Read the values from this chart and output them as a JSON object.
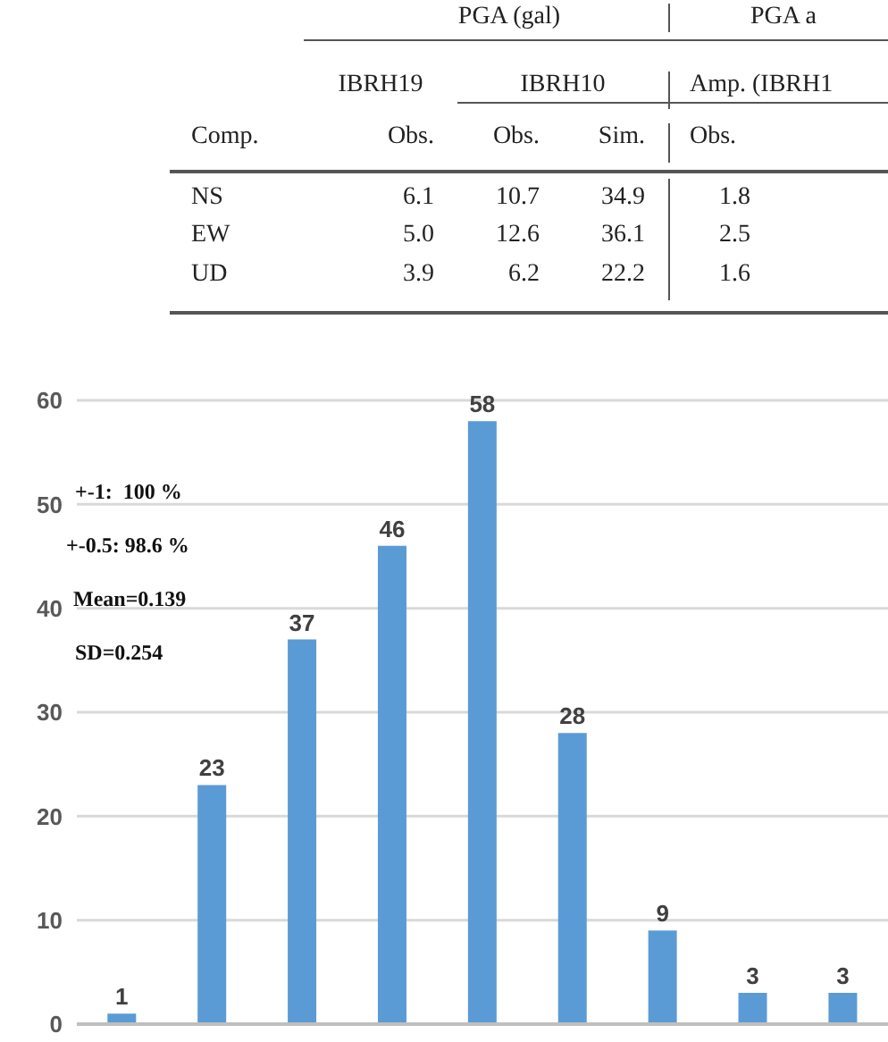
{
  "chart_data": [
    {
      "type": "heatmap",
      "data_labels": true,
      "annotations": [
        "PGA (gal)",
        "PGA a",
        "IBRH19",
        "IBRH10",
        "Amp. (IBRH1",
        "Comp."
      ],
      "categories": [
        "Obs.",
        "Obs.",
        "Sim.",
        "Obs."
      ],
      "y_categories": [
        "NS",
        "EW",
        "UD"
      ],
      "cells": [
        [
          6.1,
          10.7,
          34.9,
          1.8
        ],
        [
          5.0,
          12.6,
          36.1,
          2.5
        ],
        [
          3.9,
          6.2,
          22.2,
          1.6
        ]
      ],
      "cell_labels": [
        [
          "6.1",
          "10.7",
          "34.9",
          "1.8"
        ],
        [
          "5.0",
          "12.6",
          "36.1",
          "2.5"
        ],
        [
          "3.9",
          "6.2",
          "22.2",
          "1.6"
        ]
      ]
    },
    {
      "type": "bar",
      "categories": [
        null,
        null,
        null,
        null,
        null,
        null,
        null,
        null,
        null
      ],
      "values": [
        1,
        23,
        37,
        46,
        58,
        28,
        9,
        3,
        3
      ],
      "color": "#5b9bd5",
      "ylim": [
        0,
        60
      ],
      "yticks": [
        0,
        10,
        20,
        30,
        40,
        50,
        60
      ],
      "grid": "y",
      "data_labels": true,
      "annotations": [
        "+-1:  100 %",
        "+-0.5: 98.6 %",
        "Mean=0.139",
        "SD=0.254"
      ]
    }
  ]
}
